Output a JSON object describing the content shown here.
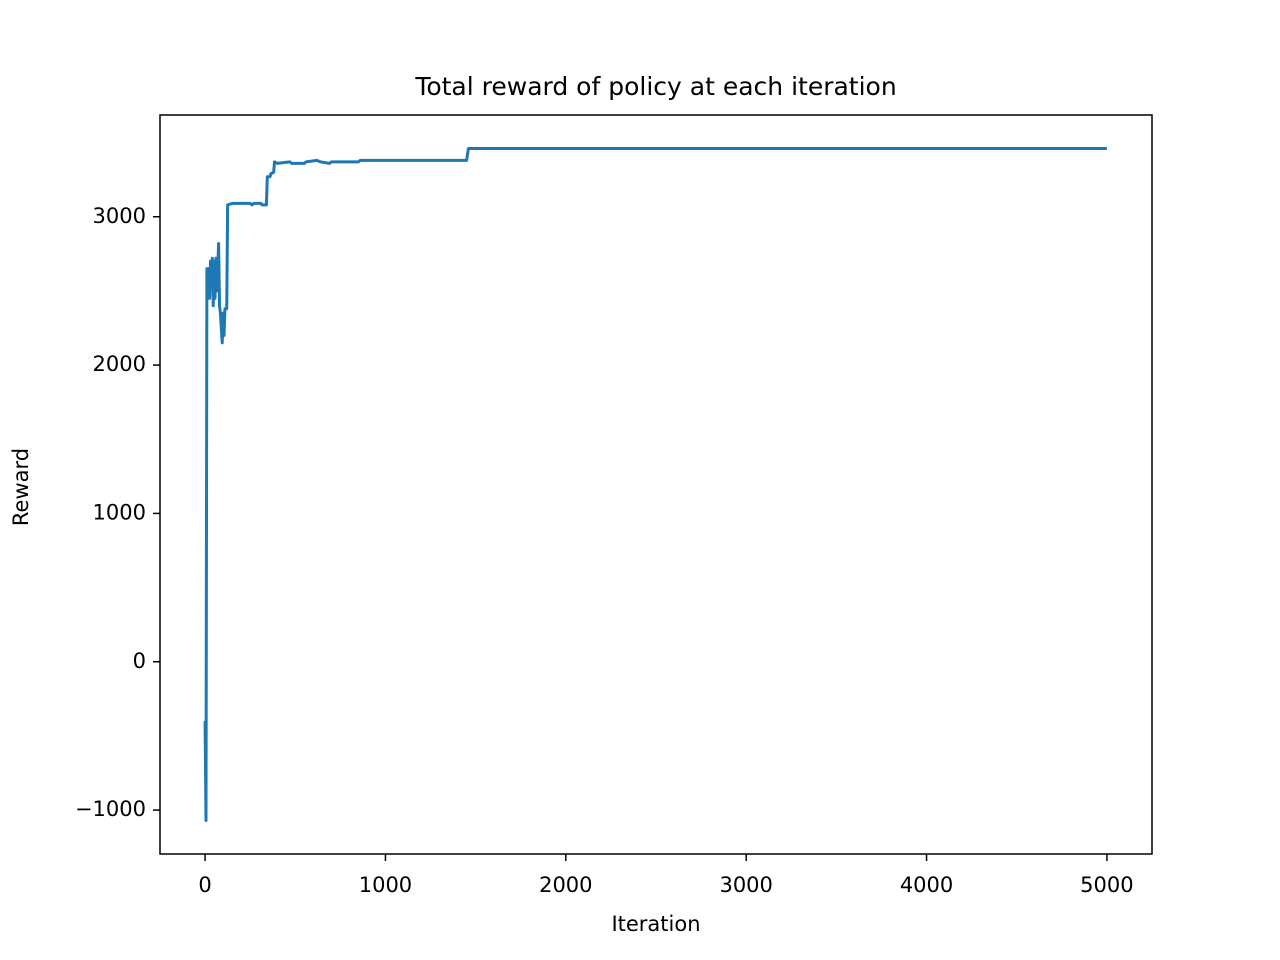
{
  "chart_data": {
    "type": "line",
    "title": "Total reward of policy at each iteration",
    "x_label": "Iteration",
    "y_label": "Reward",
    "series": [
      {
        "name": "Reward",
        "color": "#1f77b4",
        "x": [
          0,
          5,
          10,
          15,
          20,
          25,
          30,
          35,
          40,
          45,
          50,
          55,
          60,
          65,
          70,
          75,
          80,
          85,
          90,
          95,
          100,
          105,
          110,
          120,
          125,
          150,
          250,
          260,
          270,
          310,
          315,
          340,
          345,
          360,
          365,
          380,
          385,
          400,
          470,
          480,
          550,
          560,
          620,
          640,
          690,
          700,
          850,
          860,
          1450,
          1460,
          5000
        ],
        "values": [
          -400,
          -1070,
          2650,
          2500,
          2650,
          2450,
          2700,
          2600,
          2720,
          2400,
          2700,
          2450,
          2720,
          2500,
          2650,
          2820,
          2400,
          2350,
          2250,
          2150,
          2350,
          2200,
          2380,
          2380,
          3080,
          3090,
          3090,
          3080,
          3090,
          3090,
          3080,
          3080,
          3270,
          3270,
          3290,
          3300,
          3370,
          3360,
          3370,
          3360,
          3360,
          3370,
          3380,
          3370,
          3360,
          3370,
          3370,
          3380,
          3380,
          3460,
          3460
        ]
      }
    ],
    "xlim": [
      -250,
      5250
    ],
    "ylim": [
      -1296,
      3686
    ],
    "xticks": [
      0,
      1000,
      2000,
      3000,
      4000,
      5000
    ],
    "yticks": [
      {
        "value": -1000,
        "label": "−1000"
      },
      0,
      1000,
      2000,
      3000
    ],
    "grid": false
  }
}
